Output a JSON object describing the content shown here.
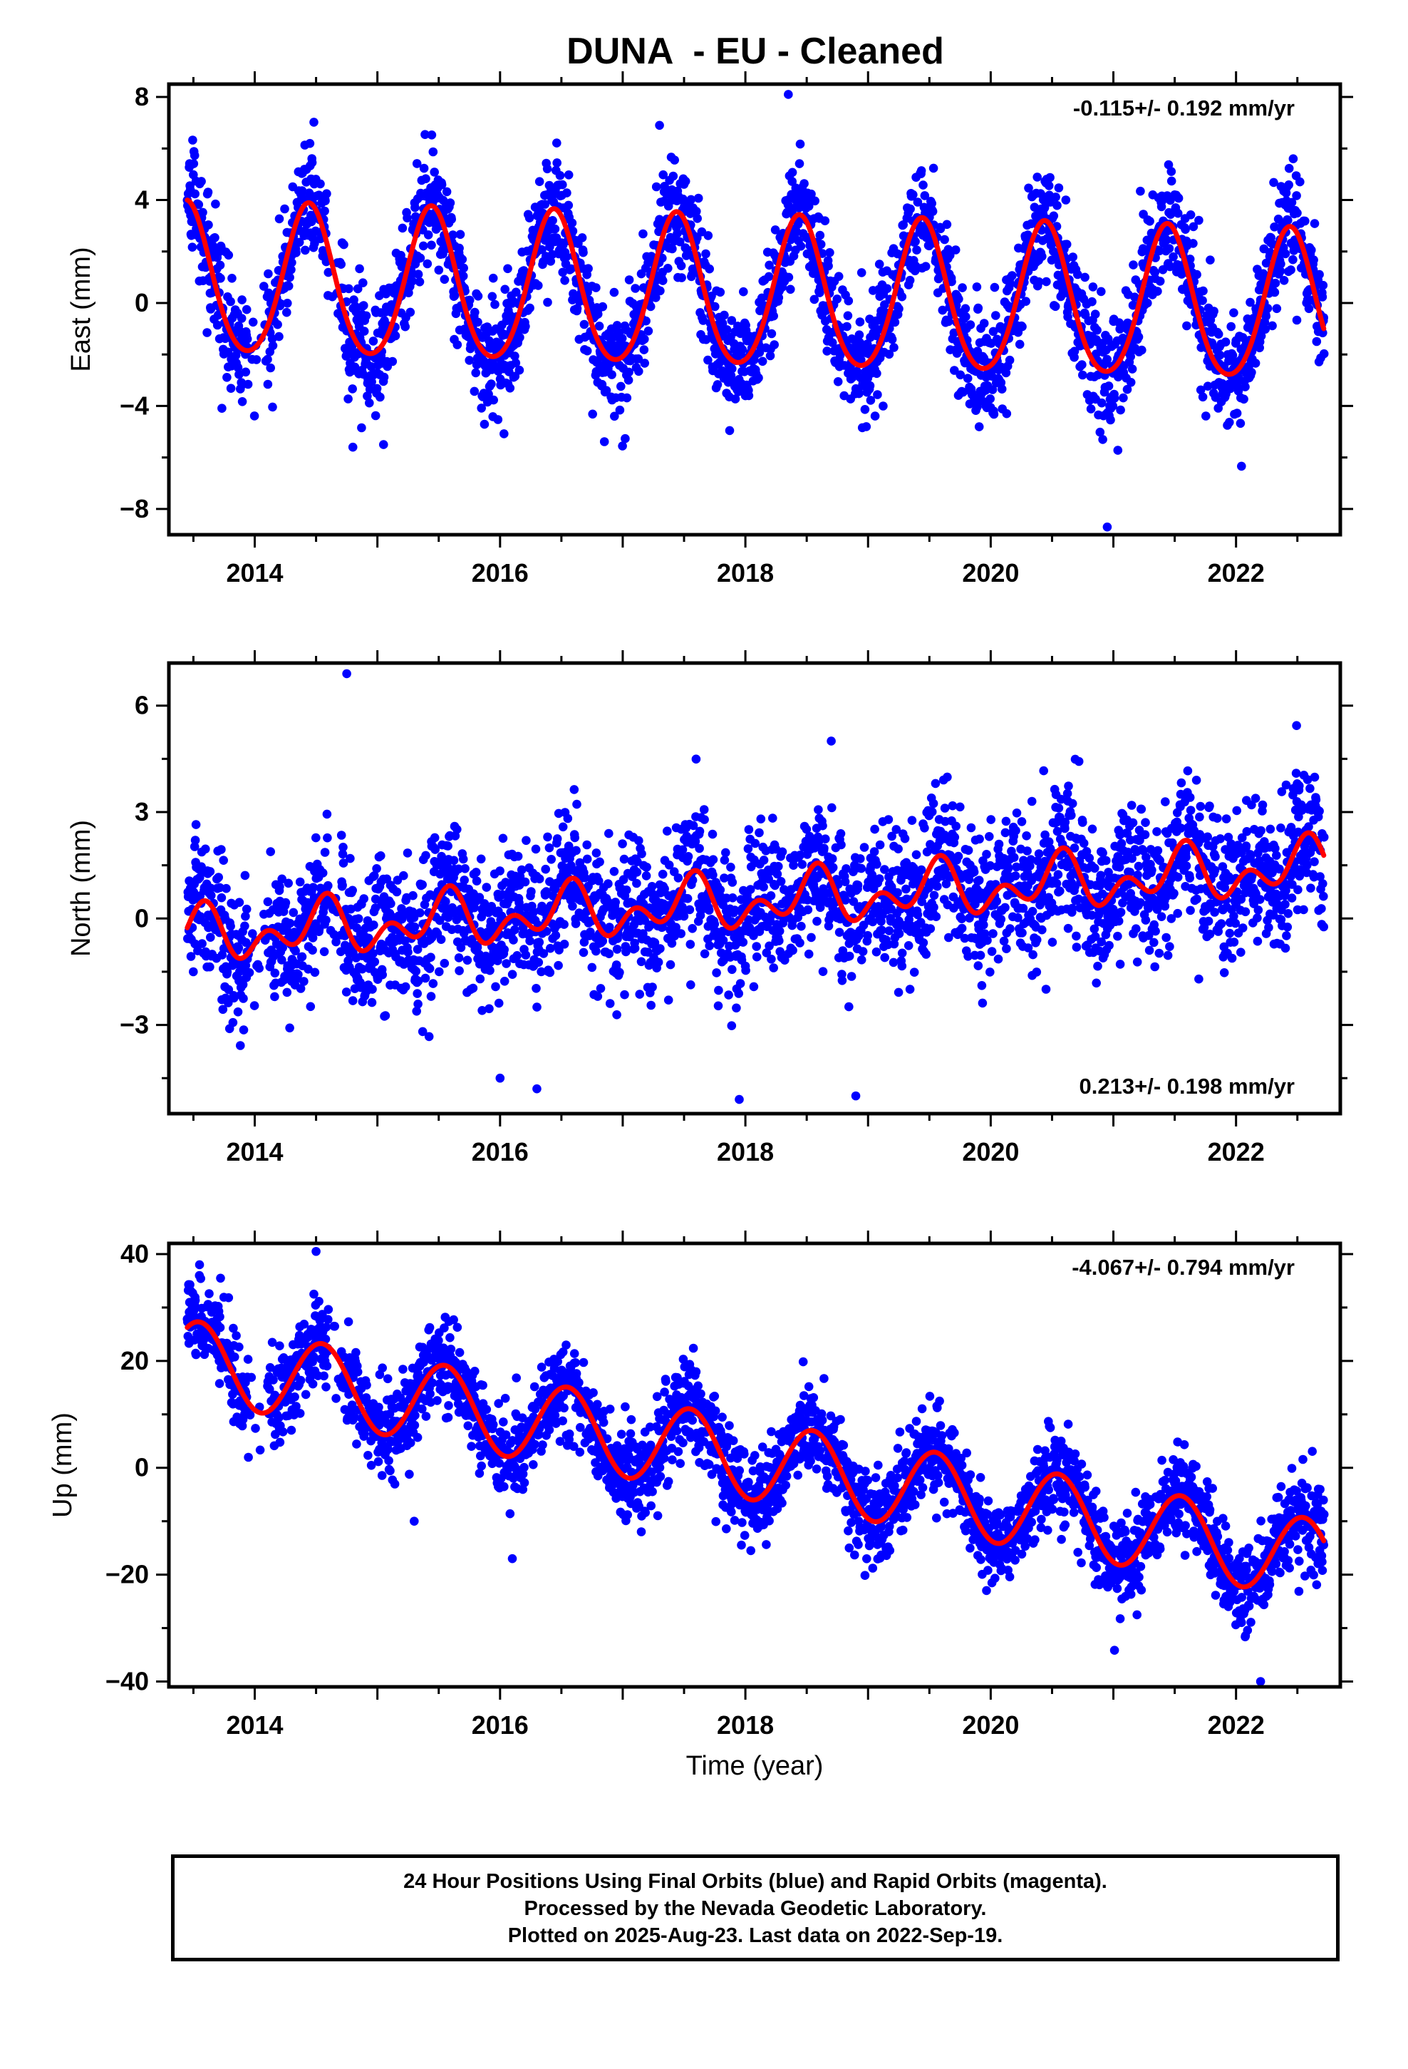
{
  "title": "DUNA  - EU - Cleaned",
  "footer": {
    "line1": "24 Hour Positions Using Final Orbits (blue) and Rapid Orbits (magenta).",
    "line2": "Processed by the Nevada Geodetic Laboratory.",
    "line3": "Plotted on 2025-Aug-23. Last data on 2022-Sep-19."
  },
  "colors": {
    "observations": "#0000ff",
    "model": "#ff0000",
    "frame": "#000000"
  },
  "chart_data": [
    {
      "type": "scatter",
      "ylabel": "East (mm)",
      "xlabel": "",
      "xlim": [
        2013.3,
        2022.85
      ],
      "ylim": [
        -9,
        8.5
      ],
      "xticks": [
        2014,
        2016,
        2018,
        2020,
        2022
      ],
      "xtick_labels": [
        "2014",
        "2016",
        "2018",
        "2020",
        "2022"
      ],
      "yticks": [
        8,
        4,
        0,
        -4,
        -8
      ],
      "ytick_labels": [
        "8",
        "4",
        "0",
        "−4",
        "−8"
      ],
      "rate_label": "-0.115+/- 0.192 mm/yr",
      "rate_position": "top-right",
      "data_range": [
        2013.45,
        2022.72
      ],
      "model": {
        "offset": 0.8,
        "trend": -0.115,
        "annual_amp": 2.9,
        "annual_phase_year": 0.44,
        "semi_amp": 0.3,
        "semi_phase_year": 0.44
      },
      "scatter_sd": 1.1,
      "outliers": [
        [
          2014.8,
          -5.6
        ],
        [
          2015.05,
          -5.5
        ],
        [
          2018.35,
          8.1
        ],
        [
          2020.95,
          -8.7
        ],
        [
          2017.3,
          6.9
        ]
      ]
    },
    {
      "type": "scatter",
      "ylabel": "North (mm)",
      "xlabel": "",
      "xlim": [
        2013.3,
        2022.85
      ],
      "ylim": [
        -5.5,
        7.2
      ],
      "xticks": [
        2014,
        2016,
        2018,
        2020,
        2022
      ],
      "xtick_labels": [
        "2014",
        "2016",
        "2018",
        "2020",
        "2022"
      ],
      "yticks": [
        6,
        3,
        0,
        -3
      ],
      "ytick_labels": [
        "6",
        "3",
        "0",
        "−3"
      ],
      "rate_label": "0.213+/- 0.198 mm/yr",
      "rate_position": "bottom-right",
      "data_range": [
        2013.45,
        2022.72
      ],
      "model": {
        "offset": -0.5,
        "trend": 0.213,
        "annual_amp": 0.5,
        "annual_phase_year": 0.55,
        "semi_amp": 0.5,
        "semi_phase_year": 0.1
      },
      "scatter_sd": 1.0,
      "outliers": [
        [
          2014.75,
          6.9
        ],
        [
          2018.7,
          5.0
        ],
        [
          2016.0,
          -4.5
        ],
        [
          2017.95,
          -5.1
        ],
        [
          2016.3,
          -4.8
        ],
        [
          2018.9,
          -5.0
        ]
      ]
    },
    {
      "type": "scatter",
      "ylabel": "Up (mm)",
      "xlabel": "Time (year)",
      "xlim": [
        2013.3,
        2022.85
      ],
      "ylim": [
        -41,
        42
      ],
      "xticks": [
        2014,
        2016,
        2018,
        2020,
        2022
      ],
      "xtick_labels": [
        "2014",
        "2016",
        "2018",
        "2020",
        "2022"
      ],
      "yticks": [
        40,
        20,
        0,
        -20,
        -40
      ],
      "ytick_labels": [
        "40",
        "20",
        "0",
        "−20",
        "−40"
      ],
      "rate_label": "-4.067+/- 0.794 mm/yr",
      "rate_position": "top-right",
      "data_range": [
        2013.45,
        2022.72
      ],
      "model": {
        "offset": 20,
        "trend": -4.067,
        "annual_amp": 7.5,
        "annual_phase_year": 0.55,
        "semi_amp": 0,
        "semi_phase_year": 0
      },
      "scatter_sd": 4.2,
      "outliers": [
        [
          2014.5,
          40.5
        ],
        [
          2013.55,
          38
        ],
        [
          2015.3,
          -10
        ],
        [
          2022.2,
          -40
        ],
        [
          2016.1,
          -17
        ]
      ]
    }
  ]
}
